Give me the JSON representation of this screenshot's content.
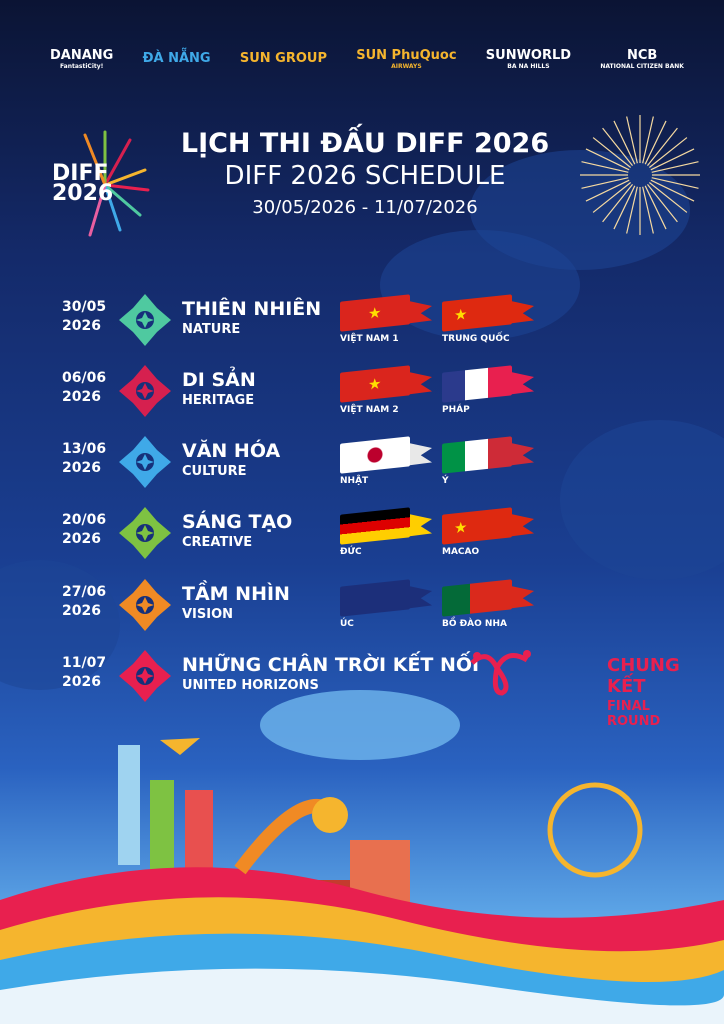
{
  "sponsors": [
    {
      "name": "DANANG",
      "sub": "FantastiCity!"
    },
    {
      "name": "ĐÀ NẴNG",
      "sub": ""
    },
    {
      "name": "SUN GROUP",
      "sub": ""
    },
    {
      "name": "SUN PhuQuoc",
      "sub": "AIRWAYS"
    },
    {
      "name": "SUNWORLD",
      "sub": "BA NA HILLS"
    },
    {
      "name": "NCB",
      "sub": "NATIONAL CITIZEN BANK"
    }
  ],
  "header": {
    "logo_text": "DIFF 2026",
    "title_vi": "LỊCH THI ĐẤU DIFF 2026",
    "title_en": "DIFF 2026 SCHEDULE",
    "date_range": "30/05/2026 - 11/07/2026"
  },
  "schedule": [
    {
      "date": "30/05",
      "year": "2026",
      "theme_vi": "THIÊN NHIÊN",
      "theme_en": "NATURE",
      "color": "#4fc9a0",
      "teams": [
        {
          "name": "VIỆT NAM 1",
          "flag": "vn"
        },
        {
          "name": "TRUNG QUỐC",
          "flag": "cn"
        }
      ]
    },
    {
      "date": "06/06",
      "year": "2026",
      "theme_vi": "DI SẢN",
      "theme_en": "HERITAGE",
      "color": "#d6204f",
      "teams": [
        {
          "name": "VIỆT NAM 2",
          "flag": "vn"
        },
        {
          "name": "PHÁP",
          "flag": "fr"
        }
      ]
    },
    {
      "date": "13/06",
      "year": "2026",
      "theme_vi": "VĂN HÓA",
      "theme_en": "CULTURE",
      "color": "#3fa9e8",
      "teams": [
        {
          "name": "NHẬT",
          "flag": "jp"
        },
        {
          "name": "Ý",
          "flag": "it"
        }
      ]
    },
    {
      "date": "20/06",
      "year": "2026",
      "theme_vi": "SÁNG TẠO",
      "theme_en": "CREATIVE",
      "color": "#7ec242",
      "teams": [
        {
          "name": "ĐỨC",
          "flag": "de"
        },
        {
          "name": "MACAO",
          "flag": "cn"
        }
      ]
    },
    {
      "date": "27/06",
      "year": "2026",
      "theme_vi": "TẦM NHÌN",
      "theme_en": "VISION",
      "color": "#f08a24",
      "teams": [
        {
          "name": "ÚC",
          "flag": "au"
        },
        {
          "name": "BỒ ĐÀO NHA",
          "flag": "pt"
        }
      ]
    },
    {
      "date": "11/07",
      "year": "2026",
      "theme_vi": "NHỮNG CHÂN TRỜI KẾT NỐI",
      "theme_en": "UNITED HORIZONS",
      "color": "#e8204f",
      "final_vi": "CHUNG KẾT",
      "final_en": "FINAL ROUND"
    }
  ]
}
